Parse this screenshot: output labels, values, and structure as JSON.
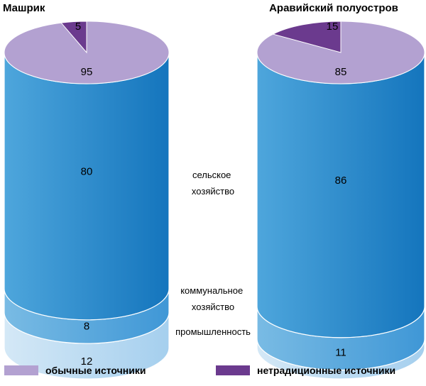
{
  "colors": {
    "conventional": "#b3a1d1",
    "nonconventional": "#6b3a8e",
    "agriculture_light": "#4ea6dc",
    "agriculture_dark": "#1475bd",
    "municipal_light": "#79bbe4",
    "municipal_dark": "#3f97d6",
    "industry_light": "#d4e8f6",
    "industry_dark": "#a5cfee"
  },
  "legend": [
    {
      "key": "conventional",
      "label": "обычные источники",
      "icon": "swatch-light-purple"
    },
    {
      "key": "nonconventional",
      "label": "нетрадиционные источники",
      "icon": "swatch-dark-purple"
    }
  ],
  "category_labels": {
    "agriculture": "сельское\nхозяйство",
    "municipal": "коммунальное\nхозяйство",
    "industry": "промышленность"
  },
  "chart_data": [
    {
      "title": "Машрик",
      "type": "pie",
      "sources": {
        "conventional": 95,
        "nonconventional": 5
      },
      "uses": {
        "agriculture": 80,
        "municipal": 8,
        "industry": 12
      }
    },
    {
      "title": "Аравийский полуостров",
      "type": "pie",
      "sources": {
        "conventional": 85,
        "nonconventional": 15
      },
      "uses": {
        "agriculture": 86,
        "municipal": 11,
        "industry": 3
      }
    }
  ]
}
